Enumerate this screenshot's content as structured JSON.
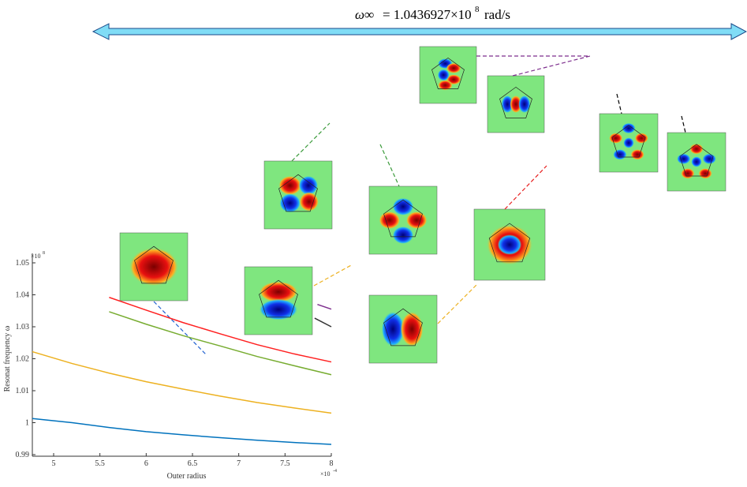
{
  "chart_data": {
    "type": "line",
    "annotation": {
      "lhs": "ω∞",
      "eq": "= 1.0436927×10",
      "power": "8",
      "unit": "rad/s"
    },
    "x_label": "Outer radius",
    "y_label": "Resonat frequency ω",
    "x_exponent": {
      "base": "×10",
      "power": "-4"
    },
    "y_exponent": {
      "base": "×10",
      "power": "8"
    },
    "xlim": [
      4.77,
      8
    ],
    "ylim": [
      0.99,
      1.05
    ],
    "xticks": [
      5,
      5.5,
      6,
      6.5,
      7,
      7.5,
      8
    ],
    "yticks": [
      0.99,
      1,
      1.01,
      1.02,
      1.03,
      1.04,
      1.05
    ],
    "series": [
      {
        "color": "#0072bd",
        "x": [
          4.77,
          5.2,
          5.6,
          6.0,
          6.4,
          6.8,
          7.2,
          7.6,
          8.0
        ],
        "values": [
          1.0013,
          1.0,
          0.9985,
          0.9972,
          0.9962,
          0.9953,
          0.9945,
          0.9938,
          0.9932
        ]
      },
      {
        "color": "#edb120",
        "x": [
          4.77,
          5.2,
          5.6,
          6.0,
          6.4,
          6.8,
          7.2,
          7.6,
          8.0
        ],
        "values": [
          1.0222,
          1.0185,
          1.0155,
          1.0128,
          1.0105,
          1.0083,
          1.0063,
          1.0046,
          1.003
        ]
      },
      {
        "color": "#77ac30",
        "x": [
          5.6,
          6.0,
          6.4,
          6.8,
          7.2,
          7.6,
          8.0
        ],
        "values": [
          1.0347,
          1.0308,
          1.0272,
          1.024,
          1.0207,
          1.0178,
          1.015
        ]
      },
      {
        "color": "#ff2020",
        "x": [
          5.6,
          6.0,
          6.4,
          6.8,
          7.2,
          7.6,
          8.0
        ],
        "values": [
          1.0392,
          1.0352,
          1.0313,
          1.0278,
          1.0244,
          1.0215,
          1.019
        ]
      },
      {
        "color": "#333333",
        "x": [
          7.82,
          8.0
        ],
        "values": [
          1.0327,
          1.03
        ]
      },
      {
        "color": "#7e2f8e",
        "x": [
          7.85,
          8.0
        ],
        "values": [
          1.037,
          1.0355
        ]
      }
    ]
  }
}
